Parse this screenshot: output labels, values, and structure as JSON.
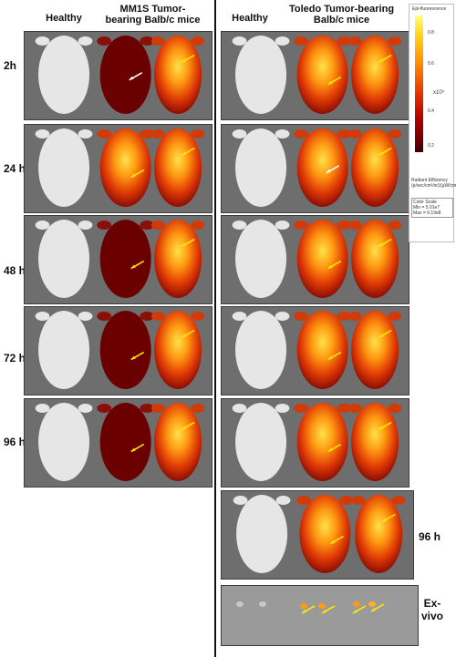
{
  "headers": {
    "left_healthy": "Healthy",
    "left_tumor": "MM1S Tumor-\nbearing Balb/c mice",
    "right_healthy": "Healthy",
    "right_tumor": "Toledo Tumor-bearing\nBalb/c mice"
  },
  "timepoints_left": [
    "2h",
    "24 h",
    "48 h",
    "72 h",
    "96 h"
  ],
  "right_labels": {
    "late": "96 h",
    "exvivo": "Ex-\nvivo"
  },
  "legend": {
    "title": "Epi-fluorescence",
    "ticks": [
      "0.8",
      "0.6",
      "0.4",
      "0.2"
    ],
    "exponent": "x10⁹",
    "units": "Radiant Efficiency\n(p/sec/cm²/sr)/(µW/cm²)",
    "scale": "Color Scale\nMin = 5.01e7\nMax = 9.19e8"
  },
  "colors": {
    "background": "#6e6e6e",
    "healthy_mouse": "#e6e6e6",
    "signal_low": "#6a0000",
    "signal_high": "#ffd31a",
    "arrow_yellow": "#ffe600",
    "arrow_white": "#ffffff"
  }
}
